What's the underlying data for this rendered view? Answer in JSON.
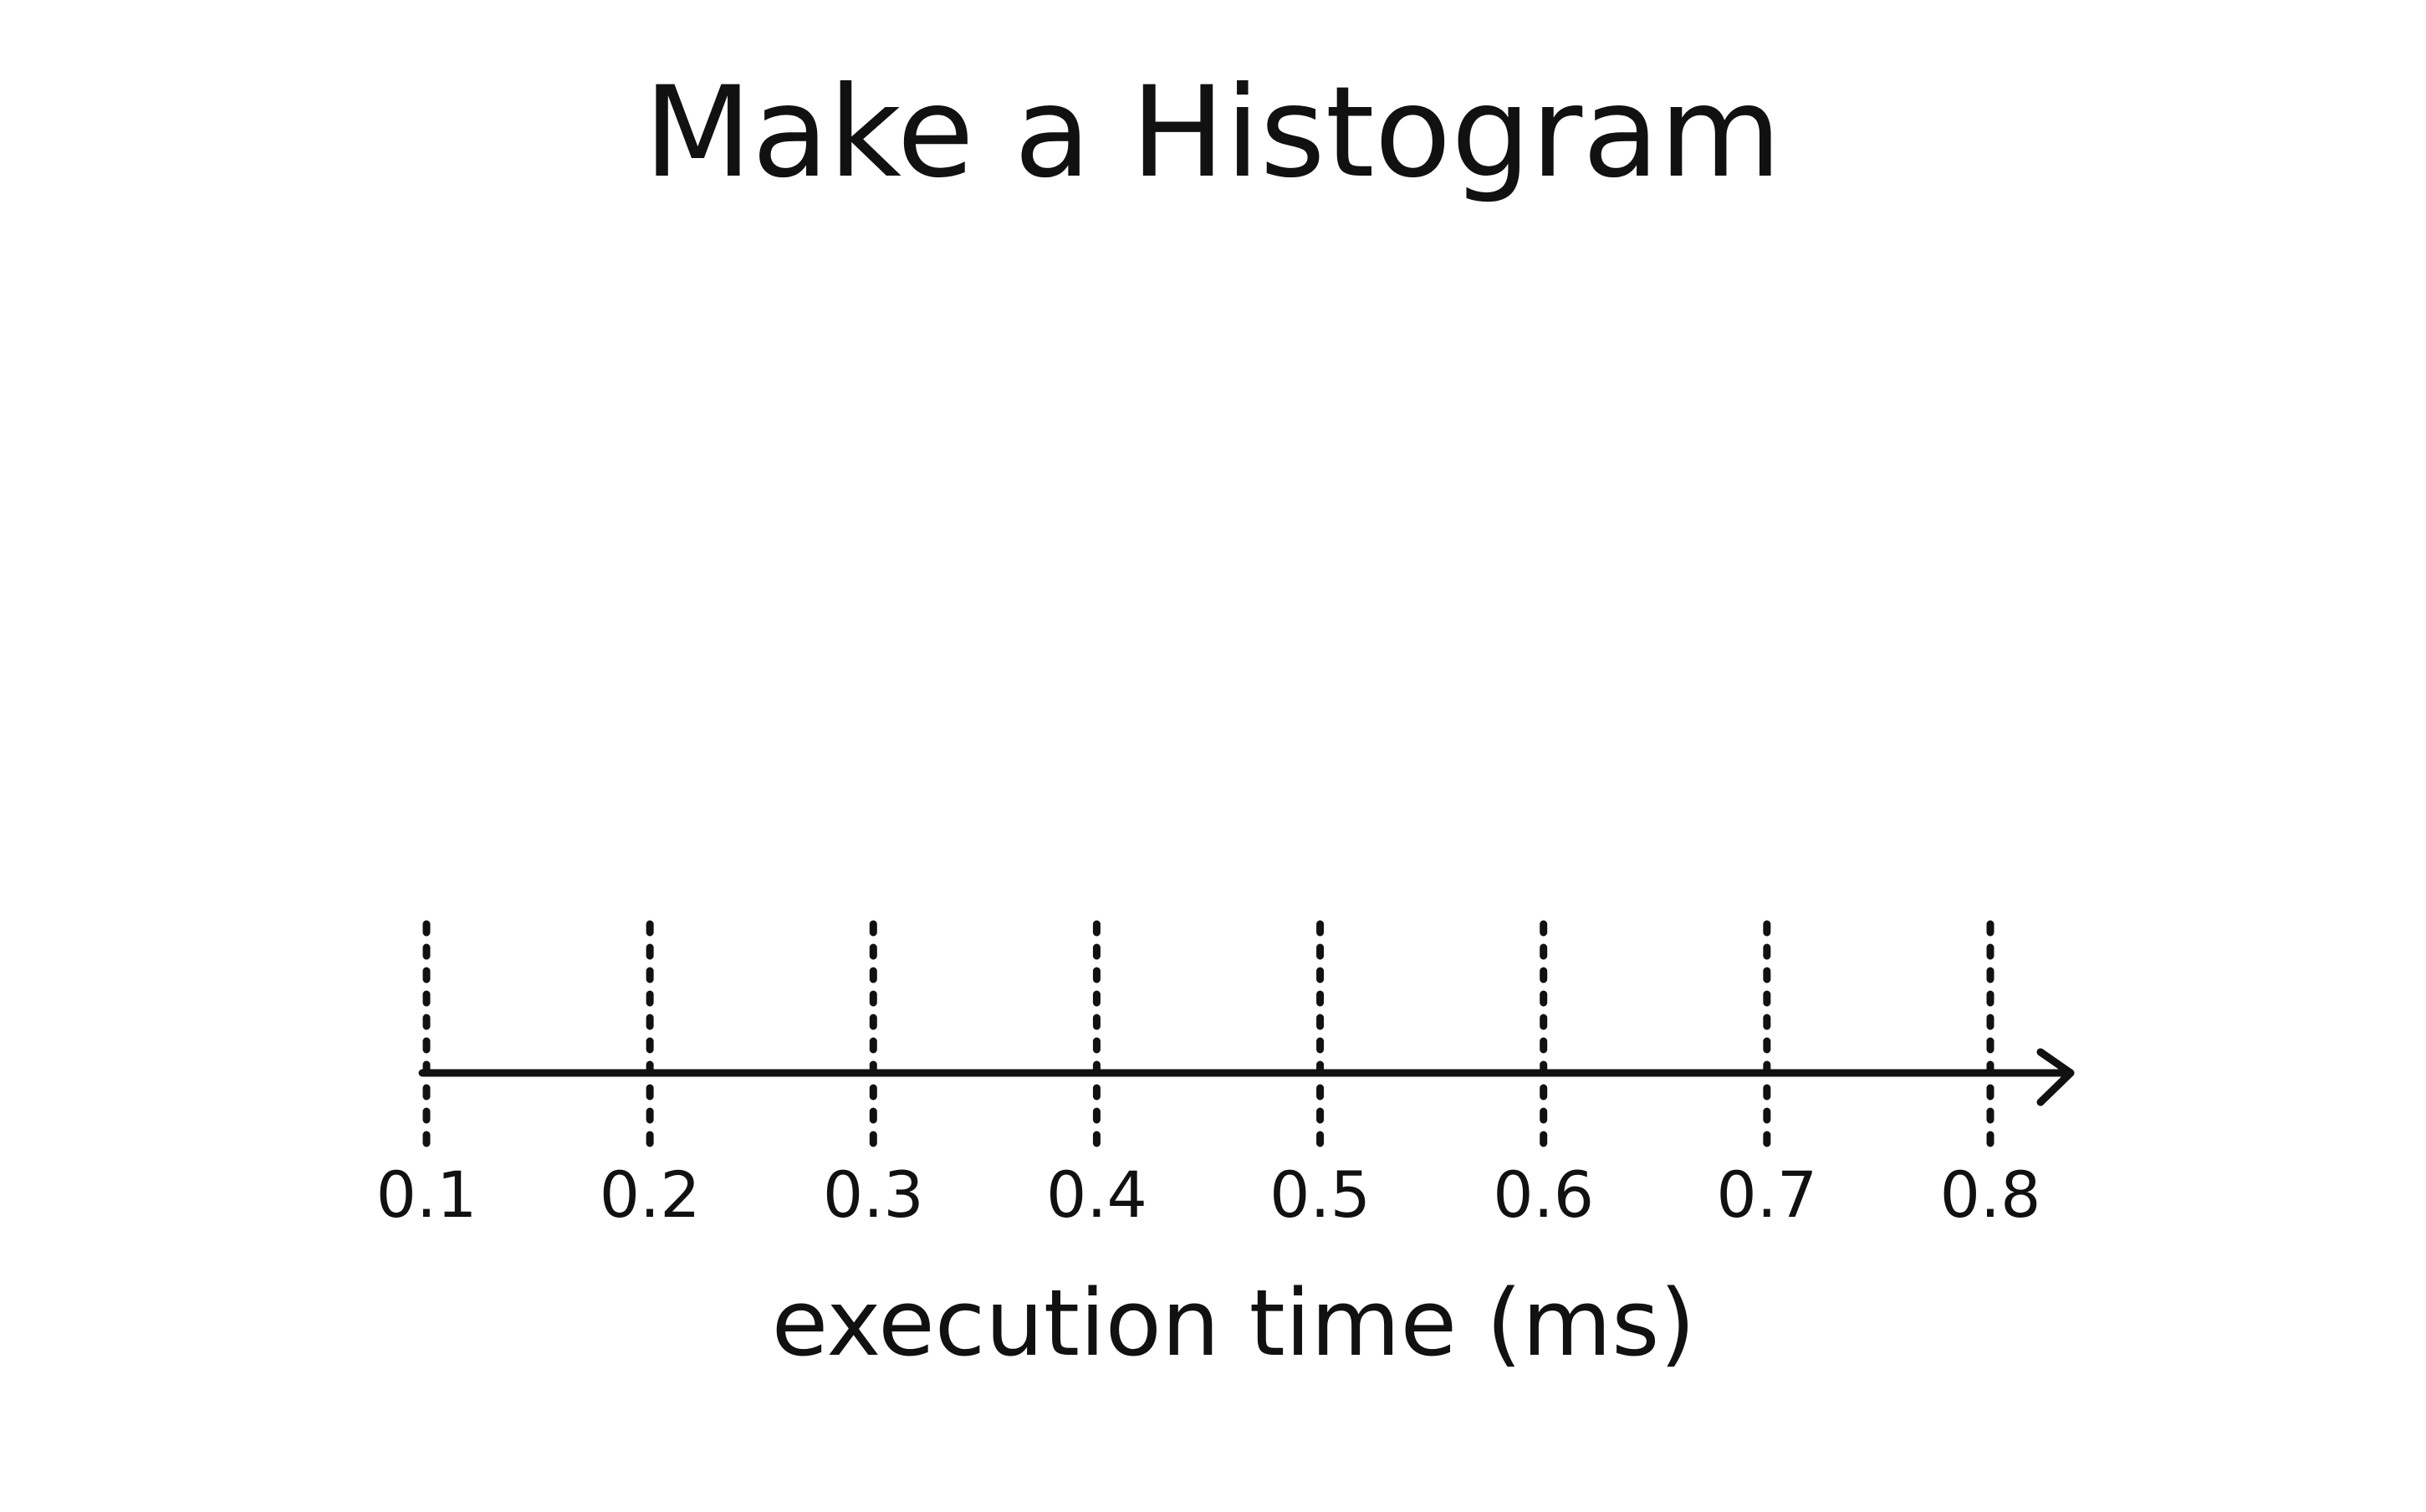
{
  "chart_data": {
    "type": "bar",
    "title": "Make a Histogram",
    "xlabel": "execution time (ms)",
    "ylabel": "",
    "x_ticks": [
      "0.1",
      "0.2",
      "0.3",
      "0.4",
      "0.5",
      "0.6",
      "0.7",
      "0.8"
    ],
    "xlim": [
      0.1,
      0.8
    ],
    "values": [],
    "grid": "vertical dashed guides at each tick",
    "legend": "none"
  },
  "colors": {
    "ink": "#111111",
    "background": "#ffffff"
  }
}
